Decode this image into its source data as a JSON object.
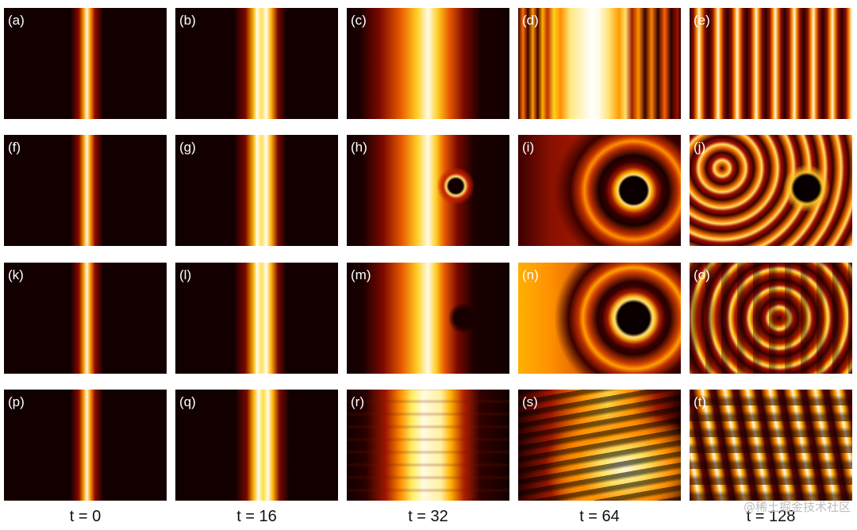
{
  "panel_labels": [
    "(a)",
    "(b)",
    "(c)",
    "(d)",
    "(e)",
    "(f)",
    "(g)",
    "(h)",
    "(i)",
    "(j)",
    "(k)",
    "(l)",
    "(m)",
    "(n)",
    "(o)",
    "(p)",
    "(q)",
    "(r)",
    "(s)",
    "(t)"
  ],
  "time_labels": [
    "t = 0",
    "t = 16",
    "t = 32",
    "t = 64",
    "t = 128"
  ],
  "watermark": "@稀土掘金技术社区",
  "colormap": {
    "dark": "#120000",
    "mid": "#ff8c00",
    "bright": "#fffbe0"
  }
}
